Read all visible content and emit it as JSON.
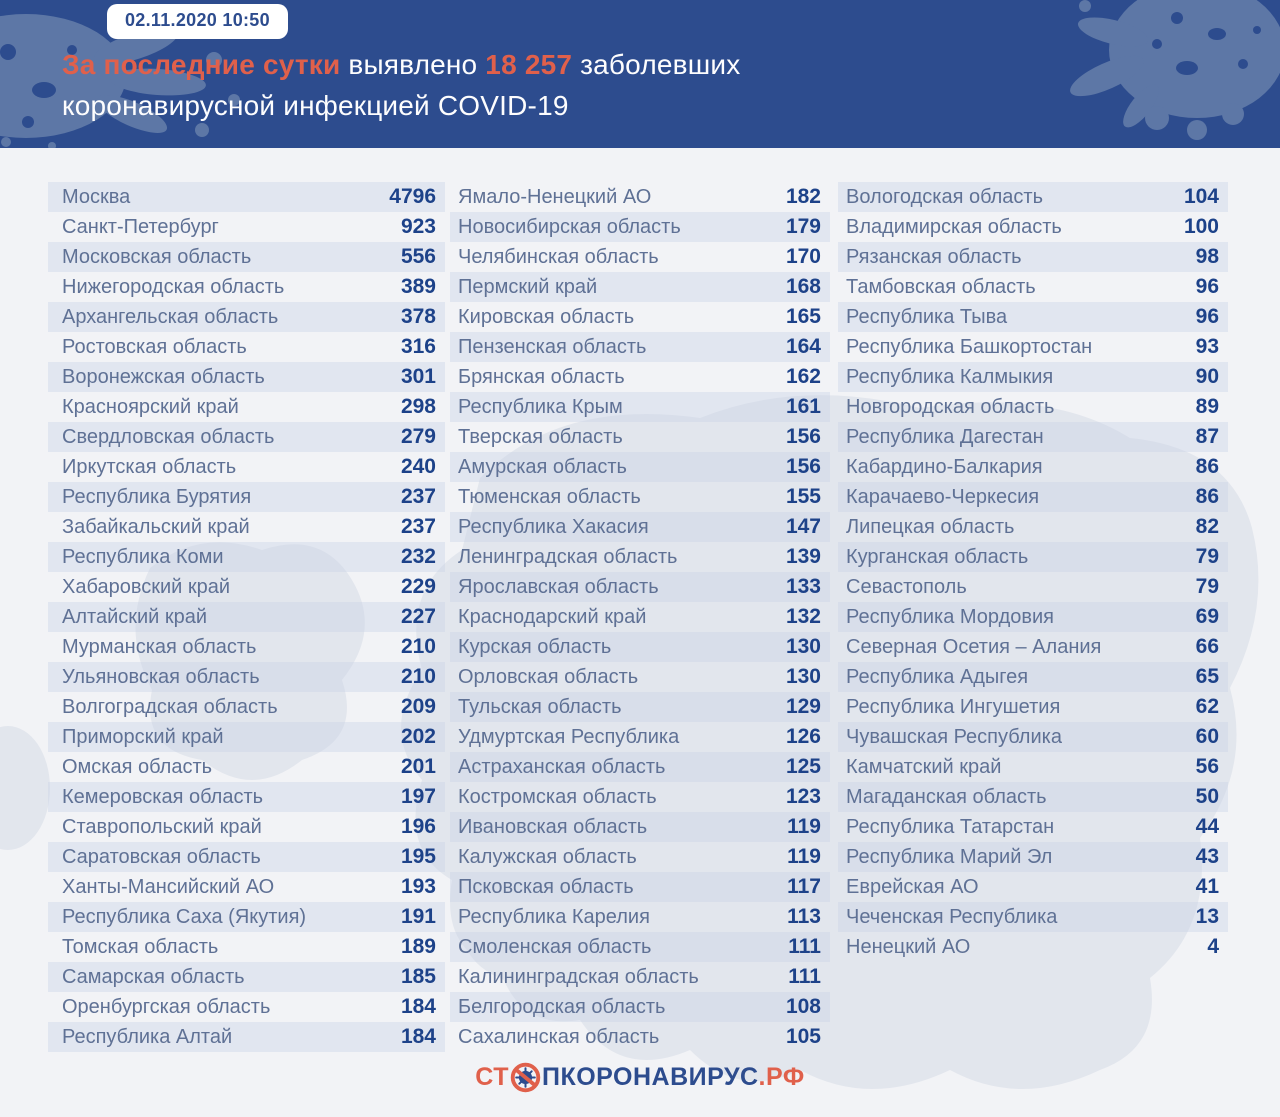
{
  "header": {
    "timestamp_badge": "02.11.2020 10:50",
    "title": {
      "accent_lead": "За последние сутки",
      "plain_mid": " выявлено ",
      "accent_number": "18 257",
      "plain_tail": " заболевших",
      "line2": "коронавирусной инфекцией COVID-19"
    }
  },
  "footer": {
    "logo": {
      "prefix_orange": "СТ",
      "middle_navy": "ПКОРОНАВИРУС",
      "suffix_orange": ".РФ",
      "icon": "virus-ban-icon"
    }
  },
  "colors": {
    "header_background": "#2d4c8e",
    "accent_orange": "#e0604b",
    "blob_light_blue": "#5d77a6",
    "page_background": "#f2f3f6",
    "stripe": "#e2e7f0",
    "map_silhouette": "#dbe0e9",
    "region_text": "#5f7195",
    "value_text": "#1d4289"
  },
  "chart_data": {
    "type": "table",
    "title": "За последние сутки выявлено 18 257 заболевших коронавирусной инфекцией COVID-19",
    "timestamp": "02.11.2020 10:50",
    "total_new_cases": 18257,
    "columns": [
      [
        {
          "region": "Москва",
          "value": 4796
        },
        {
          "region": "Санкт-Петербург",
          "value": 923
        },
        {
          "region": "Московская область",
          "value": 556
        },
        {
          "region": "Нижегородская область",
          "value": 389
        },
        {
          "region": "Архангельская область",
          "value": 378
        },
        {
          "region": "Ростовская область",
          "value": 316
        },
        {
          "region": "Воронежская область",
          "value": 301
        },
        {
          "region": "Красноярский край",
          "value": 298
        },
        {
          "region": "Свердловская область",
          "value": 279
        },
        {
          "region": "Иркутская область",
          "value": 240
        },
        {
          "region": "Республика Бурятия",
          "value": 237
        },
        {
          "region": "Забайкальский край",
          "value": 237
        },
        {
          "region": "Республика Коми",
          "value": 232
        },
        {
          "region": "Хабаровский край",
          "value": 229
        },
        {
          "region": "Алтайский край",
          "value": 227
        },
        {
          "region": "Мурманская область",
          "value": 210
        },
        {
          "region": "Ульяновская область",
          "value": 210
        },
        {
          "region": "Волгоградская область",
          "value": 209
        },
        {
          "region": "Приморский край",
          "value": 202
        },
        {
          "region": "Омская область",
          "value": 201
        },
        {
          "region": "Кемеровская область",
          "value": 197
        },
        {
          "region": "Ставропольский край",
          "value": 196
        },
        {
          "region": "Саратовская область",
          "value": 195
        },
        {
          "region": "Ханты-Мансийский АО",
          "value": 193
        },
        {
          "region": "Республика Саха (Якутия)",
          "value": 191
        },
        {
          "region": "Томская область",
          "value": 189
        },
        {
          "region": "Самарская область",
          "value": 185
        },
        {
          "region": "Оренбургская область",
          "value": 184
        },
        {
          "region": "Республика Алтай",
          "value": 184
        }
      ],
      [
        {
          "region": "Ямало-Ненецкий АО",
          "value": 182
        },
        {
          "region": "Новосибирская область",
          "value": 179
        },
        {
          "region": "Челябинская область",
          "value": 170
        },
        {
          "region": "Пермский край",
          "value": 168
        },
        {
          "region": "Кировская область",
          "value": 165
        },
        {
          "region": "Пензенская область",
          "value": 164
        },
        {
          "region": "Брянская область",
          "value": 162
        },
        {
          "region": "Республика Крым",
          "value": 161
        },
        {
          "region": "Тверская область",
          "value": 156
        },
        {
          "region": "Амурская область",
          "value": 156
        },
        {
          "region": "Тюменская область",
          "value": 155
        },
        {
          "region": "Республика Хакасия",
          "value": 147
        },
        {
          "region": "Ленинградская область",
          "value": 139
        },
        {
          "region": "Ярославская область",
          "value": 133
        },
        {
          "region": "Краснодарский край",
          "value": 132
        },
        {
          "region": "Курская область",
          "value": 130
        },
        {
          "region": "Орловская область",
          "value": 130
        },
        {
          "region": "Тульская область",
          "value": 129
        },
        {
          "region": "Удмуртская Республика",
          "value": 126
        },
        {
          "region": "Астраханская область",
          "value": 125
        },
        {
          "region": "Костромская область",
          "value": 123
        },
        {
          "region": "Ивановская область",
          "value": 119
        },
        {
          "region": "Калужская область",
          "value": 119
        },
        {
          "region": "Псковская область",
          "value": 117
        },
        {
          "region": "Республика Карелия",
          "value": 113
        },
        {
          "region": "Смоленская область",
          "value": 111
        },
        {
          "region": "Калининградская область",
          "value": 111
        },
        {
          "region": "Белгородская область",
          "value": 108
        },
        {
          "region": "Сахалинская область",
          "value": 105
        }
      ],
      [
        {
          "region": "Вологодская область",
          "value": 104
        },
        {
          "region": "Владимирская область",
          "value": 100
        },
        {
          "region": "Рязанская область",
          "value": 98
        },
        {
          "region": "Тамбовская область",
          "value": 96
        },
        {
          "region": "Республика Тыва",
          "value": 96
        },
        {
          "region": "Республика Башкортостан",
          "value": 93
        },
        {
          "region": "Республика Калмыкия",
          "value": 90
        },
        {
          "region": "Новгородская область",
          "value": 89
        },
        {
          "region": "Республика Дагестан",
          "value": 87
        },
        {
          "region": "Кабардино-Балкария",
          "value": 86
        },
        {
          "region": "Карачаево-Черкесия",
          "value": 86
        },
        {
          "region": "Липецкая область",
          "value": 82
        },
        {
          "region": "Курганская область",
          "value": 79
        },
        {
          "region": "Севастополь",
          "value": 79
        },
        {
          "region": "Республика Мордовия",
          "value": 69
        },
        {
          "region": "Северная Осетия – Алания",
          "value": 66
        },
        {
          "region": "Республика Адыгея",
          "value": 65
        },
        {
          "region": "Республика Ингушетия",
          "value": 62
        },
        {
          "region": "Чувашская Республика",
          "value": 60
        },
        {
          "region": "Камчатский край",
          "value": 56
        },
        {
          "region": "Магаданская область",
          "value": 50
        },
        {
          "region": "Республика Татарстан",
          "value": 44
        },
        {
          "region": "Республика Марий Эл",
          "value": 43
        },
        {
          "region": "Еврейская АО",
          "value": 41
        },
        {
          "region": "Чеченская Республика",
          "value": 13
        },
        {
          "region": "Ненецкий АО",
          "value": 4
        }
      ]
    ]
  }
}
